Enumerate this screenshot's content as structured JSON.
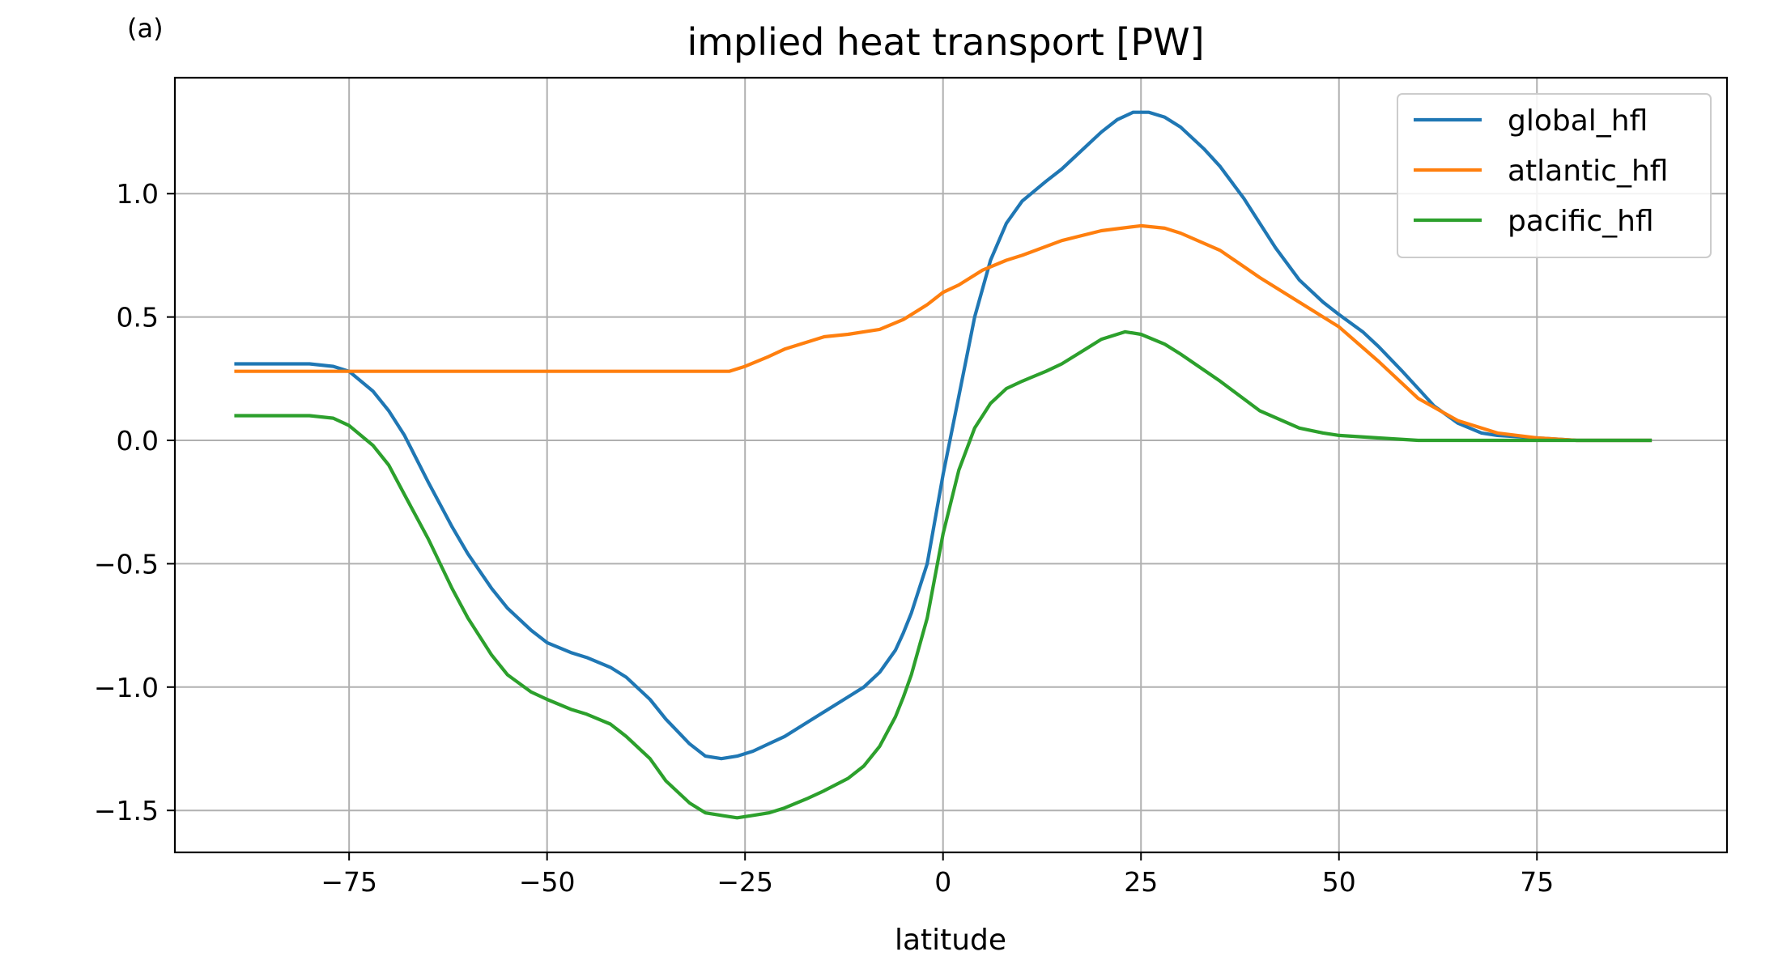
{
  "chart_data": {
    "type": "line",
    "panel_label": "(a)",
    "title": "implied heat transport [PW]",
    "xlabel": "latitude",
    "ylabel": "",
    "xlim": [
      -97,
      99
    ],
    "ylim": [
      -1.67,
      1.47
    ],
    "xticks": [
      -75,
      -50,
      -25,
      0,
      25,
      50,
      75
    ],
    "xtick_labels": [
      "−75",
      "−50",
      "−25",
      "0",
      "25",
      "50",
      "75"
    ],
    "yticks": [
      1.0,
      0.5,
      0.0,
      -0.5,
      -1.0,
      -1.5
    ],
    "ytick_labels": [
      "1.0",
      "0.5",
      "0.0",
      "−0.5",
      "−1.0",
      "−1.5"
    ],
    "grid": true,
    "legend_position": "top-right",
    "series": [
      {
        "name": "global_hfl",
        "color": "#1f77b4",
        "x": [
          -89.5,
          -85,
          -80,
          -77,
          -75,
          -72,
          -70,
          -68,
          -65,
          -62,
          -60,
          -57,
          -55,
          -52,
          -50,
          -47,
          -45,
          -42,
          -40,
          -37,
          -35,
          -32,
          -30,
          -28,
          -26,
          -24,
          -22,
          -20,
          -17,
          -15,
          -12,
          -10,
          -8,
          -6,
          -5,
          -4,
          -2,
          0,
          2,
          4,
          6,
          8,
          10,
          13,
          15,
          18,
          20,
          22,
          24,
          26,
          28,
          30,
          33,
          35,
          38,
          40,
          42,
          45,
          48,
          50,
          53,
          55,
          58,
          60,
          62,
          65,
          68,
          70,
          75,
          80,
          85,
          89.5
        ],
        "y": [
          0.31,
          0.31,
          0.31,
          0.3,
          0.28,
          0.2,
          0.12,
          0.02,
          -0.17,
          -0.35,
          -0.46,
          -0.6,
          -0.68,
          -0.77,
          -0.82,
          -0.86,
          -0.88,
          -0.92,
          -0.96,
          -1.05,
          -1.13,
          -1.23,
          -1.28,
          -1.29,
          -1.28,
          -1.26,
          -1.23,
          -1.2,
          -1.14,
          -1.1,
          -1.04,
          -1.0,
          -0.94,
          -0.85,
          -0.78,
          -0.7,
          -0.5,
          -0.14,
          0.18,
          0.5,
          0.73,
          0.88,
          0.97,
          1.05,
          1.1,
          1.19,
          1.25,
          1.3,
          1.33,
          1.33,
          1.31,
          1.27,
          1.18,
          1.11,
          0.98,
          0.88,
          0.78,
          0.65,
          0.56,
          0.51,
          0.44,
          0.38,
          0.28,
          0.21,
          0.14,
          0.07,
          0.03,
          0.02,
          0.01,
          0.0,
          0.0,
          0.0
        ]
      },
      {
        "name": "atlantic_hfl",
        "color": "#ff7f0e",
        "x": [
          -89.5,
          -80,
          -70,
          -60,
          -50,
          -40,
          -30,
          -27,
          -25,
          -22,
          -20,
          -17,
          -15,
          -12,
          -10,
          -8,
          -5,
          -2,
          0,
          2,
          5,
          8,
          10,
          15,
          20,
          25,
          28,
          30,
          35,
          40,
          45,
          50,
          55,
          60,
          65,
          70,
          75,
          80,
          85,
          89.5
        ],
        "y": [
          0.28,
          0.28,
          0.28,
          0.28,
          0.28,
          0.28,
          0.28,
          0.28,
          0.3,
          0.34,
          0.37,
          0.4,
          0.42,
          0.43,
          0.44,
          0.45,
          0.49,
          0.55,
          0.6,
          0.63,
          0.69,
          0.73,
          0.75,
          0.81,
          0.85,
          0.87,
          0.86,
          0.84,
          0.77,
          0.66,
          0.56,
          0.46,
          0.32,
          0.17,
          0.08,
          0.03,
          0.01,
          0.0,
          0.0,
          0.0
        ]
      },
      {
        "name": "pacific_hfl",
        "color": "#2ca02c",
        "x": [
          -89.5,
          -80,
          -77,
          -75,
          -72,
          -70,
          -68,
          -65,
          -62,
          -60,
          -57,
          -55,
          -52,
          -50,
          -47,
          -45,
          -42,
          -40,
          -37,
          -35,
          -32,
          -30,
          -28,
          -26,
          -24,
          -22,
          -20,
          -17,
          -15,
          -12,
          -10,
          -8,
          -6,
          -5,
          -4,
          -2,
          0,
          2,
          4,
          6,
          8,
          10,
          13,
          15,
          18,
          20,
          23,
          25,
          28,
          30,
          35,
          40,
          45,
          48,
          50,
          55,
          60,
          65,
          70,
          75,
          80,
          85,
          89.5
        ],
        "y": [
          0.1,
          0.1,
          0.09,
          0.06,
          -0.02,
          -0.1,
          -0.22,
          -0.4,
          -0.6,
          -0.72,
          -0.87,
          -0.95,
          -1.02,
          -1.05,
          -1.09,
          -1.11,
          -1.15,
          -1.2,
          -1.29,
          -1.38,
          -1.47,
          -1.51,
          -1.52,
          -1.53,
          -1.52,
          -1.51,
          -1.49,
          -1.45,
          -1.42,
          -1.37,
          -1.32,
          -1.24,
          -1.12,
          -1.04,
          -0.95,
          -0.72,
          -0.38,
          -0.12,
          0.05,
          0.15,
          0.21,
          0.24,
          0.28,
          0.31,
          0.37,
          0.41,
          0.44,
          0.43,
          0.39,
          0.35,
          0.24,
          0.12,
          0.05,
          0.03,
          0.02,
          0.01,
          0.0,
          0.0,
          0.0,
          0.0,
          0.0,
          0.0,
          0.0
        ]
      }
    ]
  }
}
